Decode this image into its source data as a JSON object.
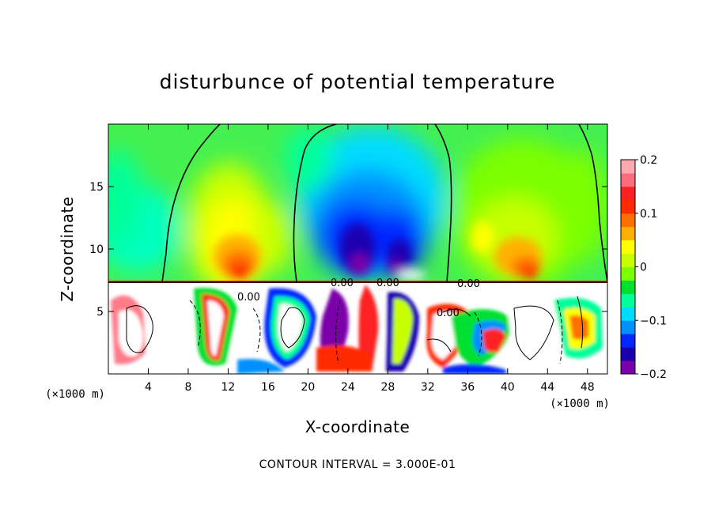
{
  "chart_data": {
    "type": "heatmap",
    "title": "disturbunce of potential temperature",
    "xlabel": "X-coordinate",
    "ylabel": "Z-coordinate",
    "x_unit": "(×1000 m)",
    "x_unit_right": "(×1000 m)",
    "x_ticks": [
      4,
      8,
      12,
      16,
      20,
      24,
      28,
      32,
      36,
      40,
      44,
      48
    ],
    "y_ticks": [
      5,
      10,
      15
    ],
    "xlim": [
      0,
      50
    ],
    "ylim": [
      0,
      20
    ],
    "colorbar": {
      "ticks": [
        0.2,
        0.1,
        0,
        -0.1,
        -0.2
      ],
      "tick_labels": [
        "0.2",
        "0.1",
        "0",
        "−0.1",
        "−0.2"
      ],
      "range": [
        -0.2,
        0.2
      ],
      "colors": [
        "#7a00a8",
        "#1a00b0",
        "#0028ff",
        "#0090ff",
        "#00dcff",
        "#00ff9a",
        "#00e030",
        "#7cff00",
        "#c8ff00",
        "#ffff00",
        "#ffb000",
        "#ff7000",
        "#ff2a00",
        "#ff2020",
        "#ff6c7c",
        "#ffa8b0"
      ]
    },
    "contour_labels": [
      "0.00",
      "0.00",
      "0.00",
      "0.00",
      "0.00"
    ],
    "contour_interval": "CONTOUR INTERVAL = 3.000E-01",
    "regions": [
      {
        "x": 4,
        "z": 16,
        "value": -0.05
      },
      {
        "x": 13,
        "z": 10,
        "value": 0.13
      },
      {
        "x": 14,
        "z": 15,
        "value": 0.06
      },
      {
        "x": 25,
        "z": 11,
        "value": -0.17
      },
      {
        "x": 26,
        "z": 16,
        "value": -0.12
      },
      {
        "x": 40,
        "z": 10,
        "value": 0.12
      },
      {
        "x": 40,
        "z": 15,
        "value": 0.05
      },
      {
        "x": 48,
        "z": 15,
        "value": 0.02
      },
      {
        "x": 8,
        "z": 4,
        "value": 0.2
      },
      {
        "x": 24,
        "z": 4,
        "value": -0.2
      },
      {
        "x": 40,
        "z": 4,
        "value": 0.2
      }
    ]
  }
}
